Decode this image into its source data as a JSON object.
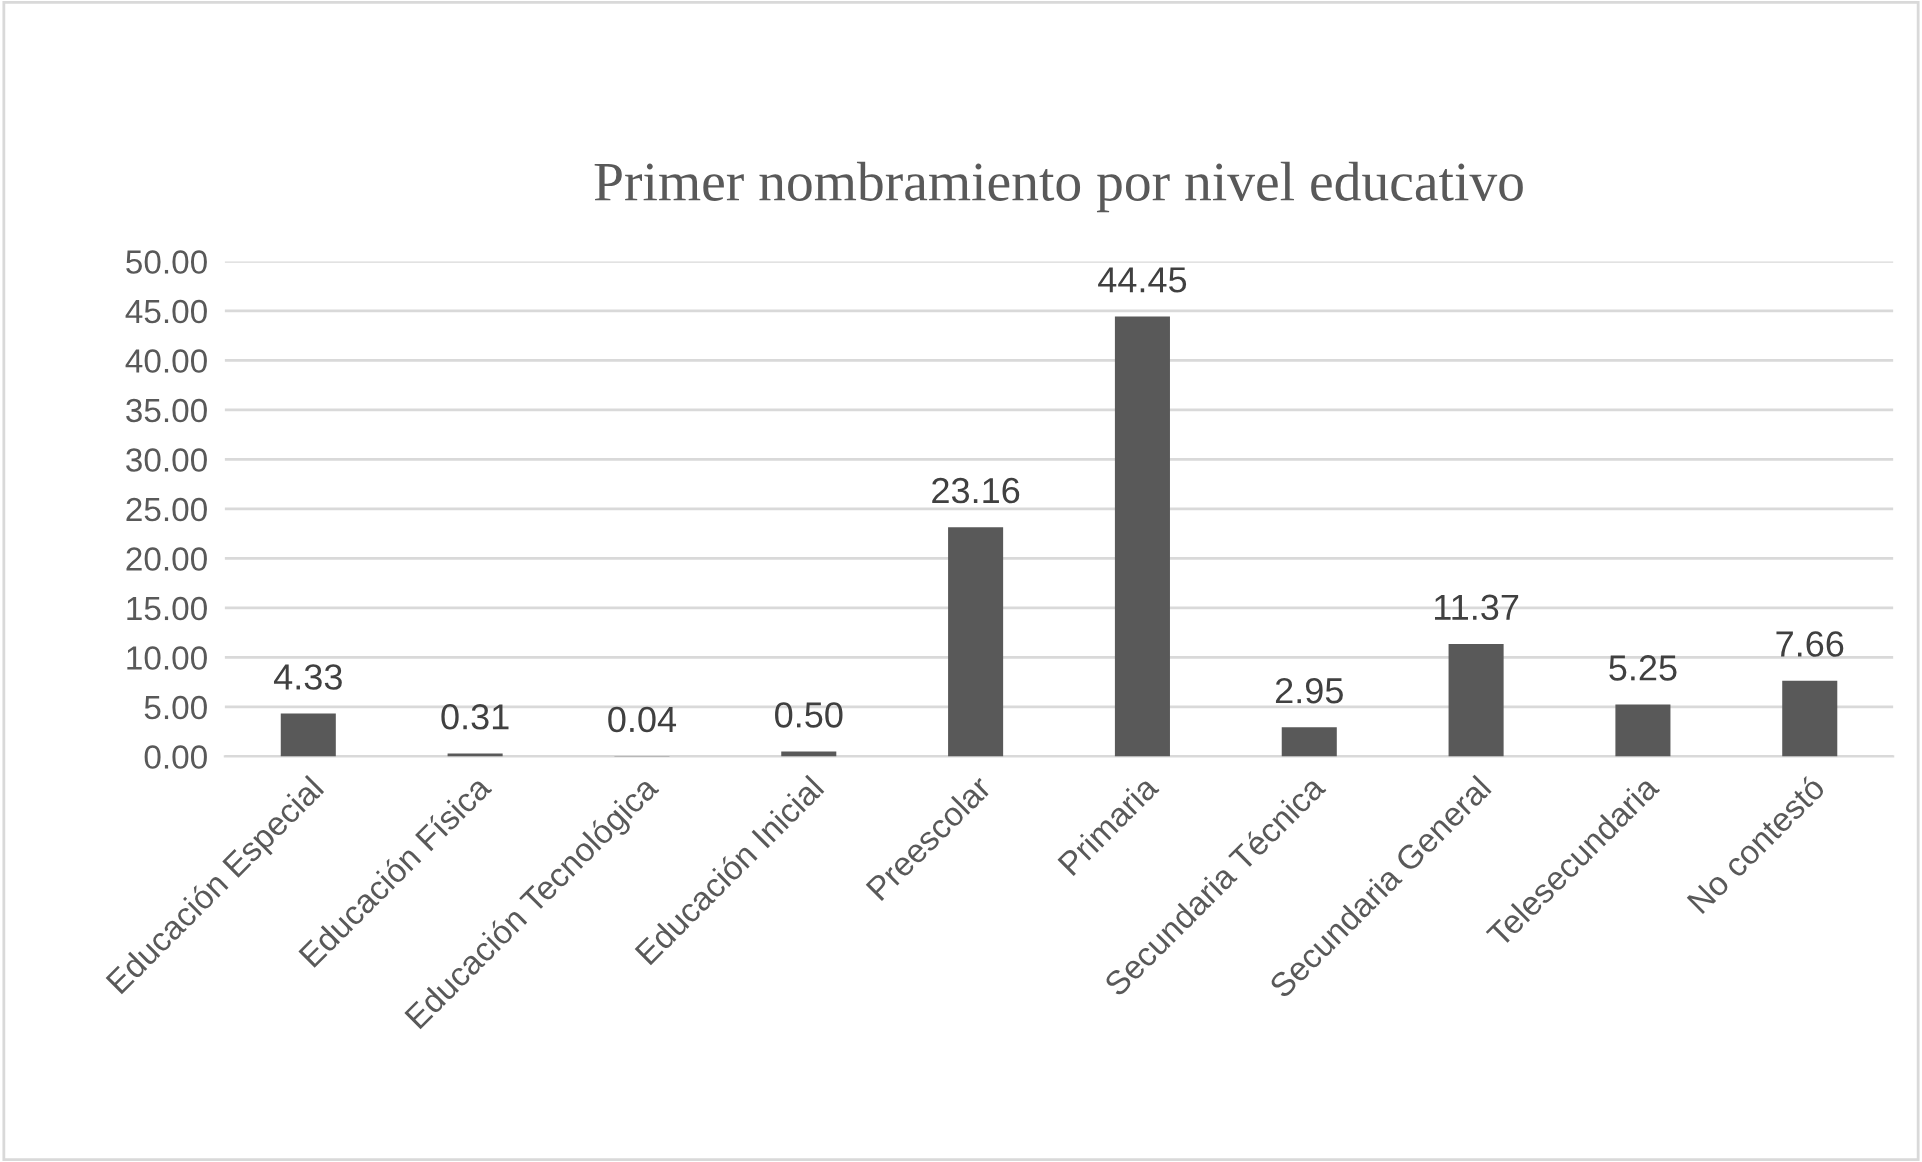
{
  "chart_data": {
    "type": "bar",
    "title": "Primer nombramiento por nivel educativo",
    "categories": [
      "Educación Especial",
      "Educación Física",
      "Educación Tecnológica",
      "Educación Inicial",
      "Preescolar",
      "Primaria",
      "Secundaria Técnica",
      "Secundaria General",
      "Telesecundaria",
      "No contestó"
    ],
    "values": [
      4.33,
      0.31,
      0.04,
      0.5,
      23.16,
      44.45,
      2.95,
      11.37,
      5.25,
      7.66
    ],
    "value_labels": [
      "4.33",
      "0.31",
      "0.04",
      "0.50",
      "23.16",
      "44.45",
      "2.95",
      "11.37",
      "5.25",
      "7.66"
    ],
    "color": "#595959",
    "ylim": [
      0,
      50
    ],
    "yticks": [
      {
        "value": 0,
        "label": "0.00"
      },
      {
        "value": 5,
        "label": "5.00"
      },
      {
        "value": 10,
        "label": "10.00"
      },
      {
        "value": 15,
        "label": "15.00"
      },
      {
        "value": 20,
        "label": "20.00"
      },
      {
        "value": 25,
        "label": "25.00"
      },
      {
        "value": 30,
        "label": "30.00"
      },
      {
        "value": 35,
        "label": "35.00"
      },
      {
        "value": 40,
        "label": "40.00"
      },
      {
        "value": 45,
        "label": "45.00"
      },
      {
        "value": 50,
        "label": "50.00"
      }
    ],
    "grid": "y",
    "legend": false
  }
}
